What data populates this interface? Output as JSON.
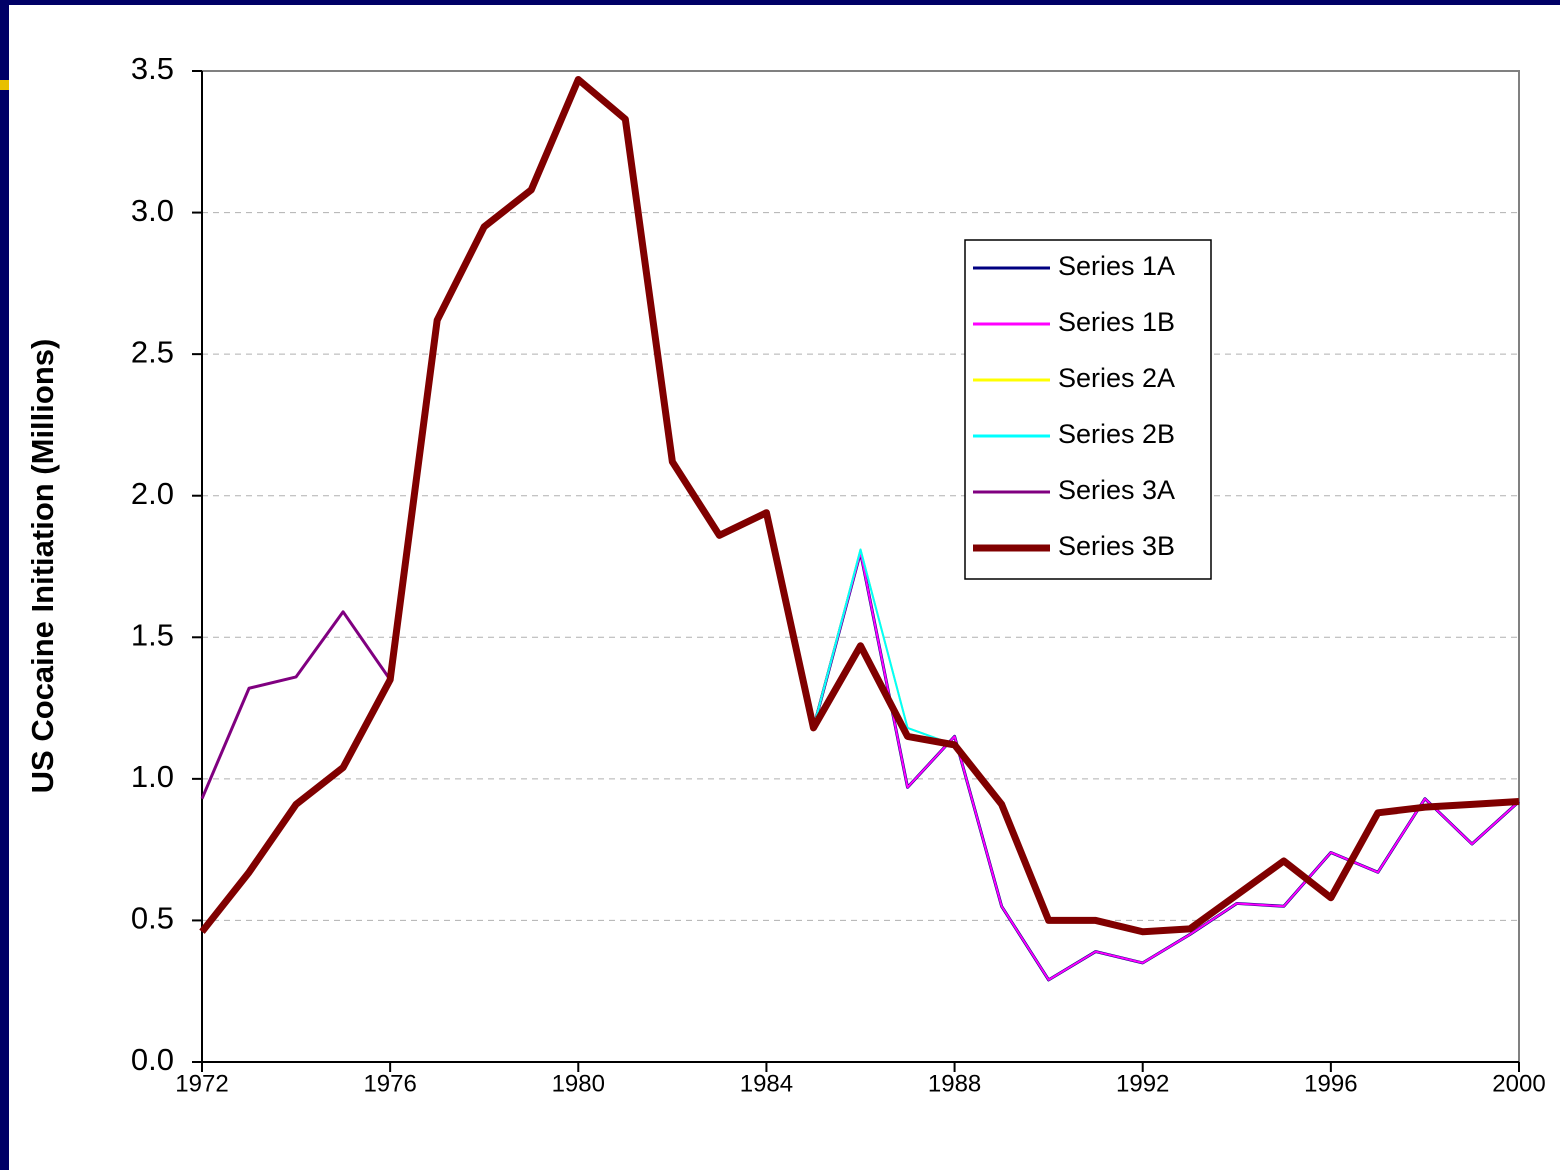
{
  "chart_data": {
    "type": "line",
    "ylabel": "US Cocaine Initiation (Millions)",
    "x": [
      1972,
      1973,
      1974,
      1975,
      1976,
      1977,
      1978,
      1979,
      1980,
      1981,
      1982,
      1983,
      1984,
      1985,
      1986,
      1987,
      1988,
      1989,
      1990,
      1991,
      1992,
      1993,
      1994,
      1995,
      1996,
      1997,
      1998,
      1999,
      2000
    ],
    "xlim": [
      1972,
      2000
    ],
    "xticks": [
      1972,
      1976,
      1980,
      1984,
      1988,
      1992,
      1996,
      2000
    ],
    "ylim": [
      0,
      3.5
    ],
    "yticks": [
      {
        "value": 0,
        "label": "0.0"
      },
      0.5,
      {
        "value": 1,
        "label": "1.0"
      },
      1.5,
      {
        "value": 2,
        "label": "2.0"
      },
      2.5,
      {
        "value": 3,
        "label": "3.0"
      },
      3.5
    ],
    "grid": true,
    "legend": "upper right",
    "series": [
      {
        "name": "Series 1A",
        "color": "#000080",
        "width": 3,
        "values": [
          null,
          null,
          null,
          null,
          null,
          null,
          null,
          null,
          null,
          null,
          null,
          null,
          null,
          1.18,
          1.8,
          0.97,
          1.15,
          0.55,
          0.29,
          0.39,
          0.35,
          0.45,
          0.56,
          0.55,
          0.74,
          0.67,
          0.93,
          0.77,
          0.92
        ]
      },
      {
        "name": "Series 1B",
        "color": "#ff00ff",
        "width": 2,
        "values": [
          null,
          null,
          null,
          null,
          null,
          null,
          null,
          null,
          null,
          null,
          null,
          null,
          null,
          1.18,
          1.8,
          0.97,
          1.15,
          0.55,
          0.29,
          0.39,
          0.35,
          0.45,
          0.56,
          0.55,
          0.74,
          0.67,
          0.93,
          0.77,
          0.92
        ]
      },
      {
        "name": "Series 2A",
        "color": "#ffff00",
        "width": 2,
        "values": [
          null,
          null,
          null,
          null,
          null,
          null,
          null,
          null,
          null,
          null,
          null,
          null,
          null,
          1.18,
          1.81,
          1.18,
          1.12,
          0.91,
          0.5,
          0.5,
          0.46,
          0.47,
          0.59,
          0.71,
          0.58,
          0.88,
          0.9,
          0.91,
          0.92
        ]
      },
      {
        "name": "Series 2B",
        "color": "#00ffff",
        "width": 2,
        "values": [
          null,
          null,
          null,
          null,
          null,
          null,
          null,
          null,
          null,
          null,
          null,
          null,
          null,
          1.18,
          1.81,
          1.18,
          1.12,
          0.91,
          0.5,
          0.5,
          0.46,
          0.47,
          0.59,
          0.71,
          0.58,
          0.88,
          0.9,
          0.91,
          0.92
        ]
      },
      {
        "name": "Series 3A",
        "color": "#800080",
        "width": 3,
        "values": [
          0.93,
          1.32,
          1.36,
          1.59,
          1.35,
          2.62,
          2.95,
          3.08,
          3.47,
          3.33,
          2.12,
          1.86,
          1.94,
          1.18,
          1.47,
          1.15,
          1.12,
          0.91,
          0.5,
          0.5,
          0.46,
          0.47,
          0.59,
          0.71,
          0.58,
          0.88,
          0.9,
          0.91,
          0.92
        ]
      },
      {
        "name": "Series 3B",
        "color": "#800000",
        "width": 7,
        "values": [
          0.46,
          0.67,
          0.91,
          1.04,
          1.35,
          2.62,
          2.95,
          3.08,
          3.47,
          3.33,
          2.12,
          1.86,
          1.94,
          1.18,
          1.47,
          1.15,
          1.12,
          0.91,
          0.5,
          0.5,
          0.46,
          0.47,
          0.59,
          0.71,
          0.58,
          0.88,
          0.9,
          0.91,
          0.92
        ]
      }
    ]
  }
}
